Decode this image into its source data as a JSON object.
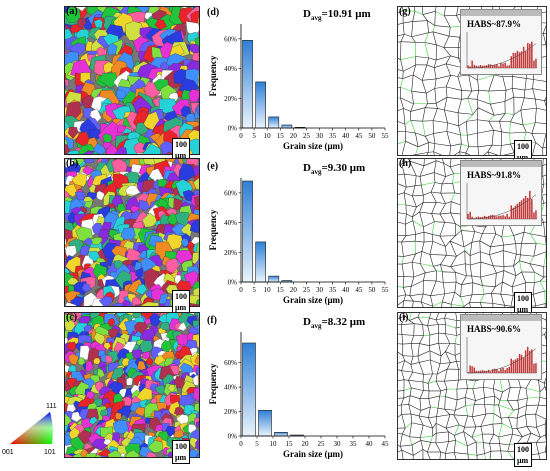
{
  "panels": {
    "a": {
      "label": "(a)",
      "scale": "100 μm"
    },
    "b": {
      "label": "(b)",
      "scale": "100 μm"
    },
    "c": {
      "label": "(c)",
      "scale": "100 μm"
    },
    "g": {
      "label": "(g)",
      "scale": "100 μm",
      "habs": "HABS~87.9%"
    },
    "h": {
      "label": "(h)",
      "scale": "100 μm",
      "habs": "HABS~91.8%"
    },
    "i": {
      "label": "(i)",
      "scale": "100 μm",
      "habs": "HABS~90.6%"
    }
  },
  "legend": {
    "corner_top": "111",
    "corner_left": "001",
    "corner_right": "101"
  },
  "chart_data": [
    {
      "type": "bar",
      "label": "(d)",
      "annotation": "D",
      "annotation_sub": "avg",
      "annotation_value": "=10.91 μm",
      "categories": [
        "0-5",
        "5-10",
        "10-15",
        "15-20",
        "20-25",
        "25-30"
      ],
      "values": [
        59,
        31,
        7.5,
        2,
        0.5,
        0
      ],
      "bins_start": [
        0,
        5,
        10,
        15,
        20,
        25
      ],
      "bin_width": 5,
      "xlabel": "Grain size (μm)",
      "ylabel": "Frequency",
      "xticks": [
        0,
        5,
        10,
        15,
        20,
        25,
        30,
        35,
        40,
        45,
        50,
        55
      ],
      "xlim": [
        0,
        55
      ],
      "yticks": [
        "0%",
        "20%",
        "40%",
        "60%"
      ],
      "ylim": [
        0,
        70
      ]
    },
    {
      "type": "bar",
      "label": "(e)",
      "annotation": "D",
      "annotation_sub": "avg",
      "annotation_value": "=9.30 μm",
      "values": [
        68,
        27,
        4,
        1,
        0
      ],
      "bins_start": [
        0,
        5,
        10,
        15,
        20
      ],
      "bin_width": 5,
      "xlabel": "Grain size (μm)",
      "ylabel": "Frequency",
      "xticks": [
        0,
        5,
        10,
        15,
        20,
        25,
        30,
        35,
        40,
        45,
        50,
        55
      ],
      "xlim": [
        0,
        55
      ],
      "yticks": [
        "0%",
        "20%",
        "40%",
        "60%"
      ],
      "ylim": [
        0,
        70
      ]
    },
    {
      "type": "bar",
      "label": "(f)",
      "annotation": "D",
      "annotation_sub": "avg",
      "annotation_value": "=8.32 μm",
      "values": [
        76,
        21,
        3,
        0.8,
        0
      ],
      "bins_start": [
        0,
        5,
        10,
        15,
        20
      ],
      "bin_width": 5,
      "xlabel": "Grain size (μm)",
      "ylabel": "Frequency",
      "xticks": [
        0,
        5,
        10,
        15,
        20,
        25,
        30,
        35,
        40,
        45
      ],
      "xlim": [
        0,
        45
      ],
      "yticks": [
        "0%",
        "20%",
        "40%",
        "60%"
      ],
      "ylim": [
        0,
        85
      ]
    }
  ]
}
